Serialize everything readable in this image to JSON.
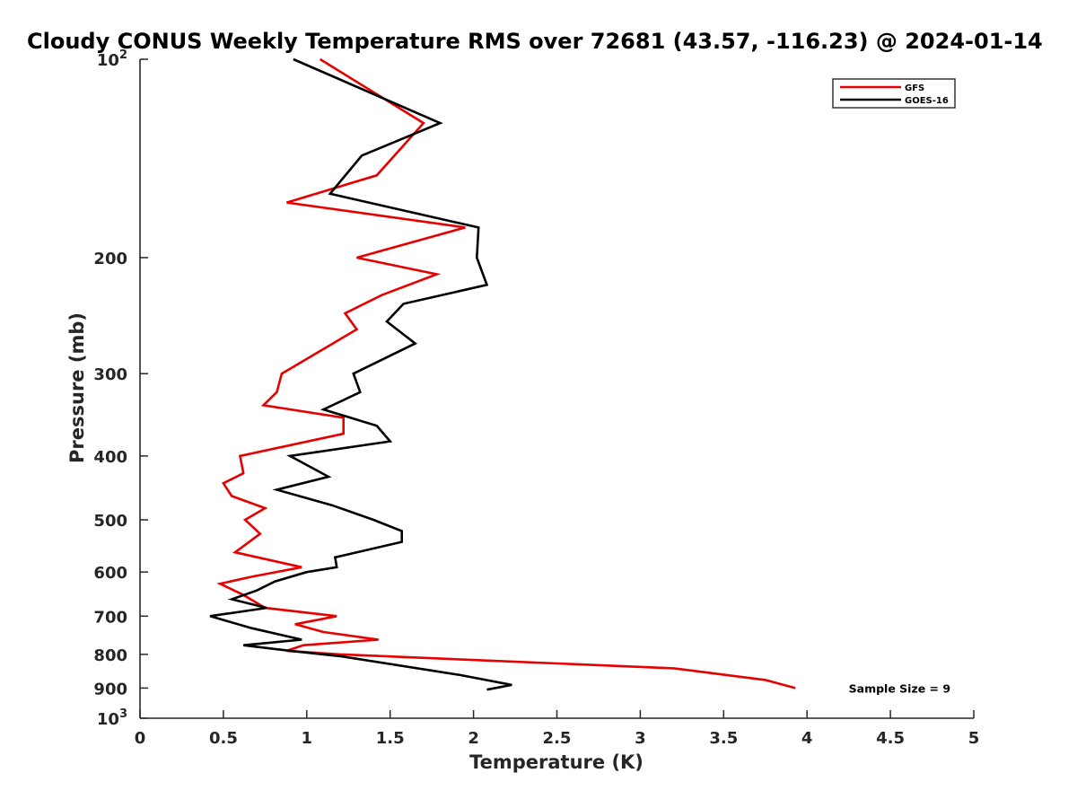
{
  "chart_data": {
    "type": "line",
    "title": "Cloudy CONUS Weekly Temperature RMS over 72681 (43.57, -116.23) @ 2024-01-14",
    "xlabel": "Temperature (K)",
    "ylabel": "Pressure (mb)",
    "xlim": [
      0,
      5
    ],
    "ylim": [
      100,
      1000
    ],
    "y_scale": "log",
    "y_reversed": true,
    "grid": false,
    "legend_position": "top-right",
    "x_ticks": [
      0,
      0.5,
      1,
      1.5,
      2,
      2.5,
      3,
      3.5,
      4,
      4.5,
      5
    ],
    "x_tick_labels": [
      "0",
      "0.5",
      "1",
      "1.5",
      "2",
      "2.5",
      "3",
      "3.5",
      "4",
      "4.5",
      "5"
    ],
    "y_ticks": [
      {
        "value": 100,
        "base": "10",
        "exp": "2"
      },
      {
        "value": 200,
        "label": "200"
      },
      {
        "value": 300,
        "label": "300"
      },
      {
        "value": 400,
        "label": "400"
      },
      {
        "value": 500,
        "label": "500"
      },
      {
        "value": 600,
        "label": "600"
      },
      {
        "value": 700,
        "label": "700"
      },
      {
        "value": 800,
        "label": "800"
      },
      {
        "value": 900,
        "label": "900"
      },
      {
        "value": 1000,
        "base": "10",
        "exp": "3"
      }
    ],
    "series": [
      {
        "name": "GFS",
        "color": "#e60000",
        "points": [
          [
            1.08,
            100
          ],
          [
            1.7,
            125
          ],
          [
            1.42,
            150
          ],
          [
            0.88,
            165
          ],
          [
            1.95,
            180
          ],
          [
            1.3,
            200
          ],
          [
            1.78,
            212
          ],
          [
            1.45,
            228
          ],
          [
            1.23,
            243
          ],
          [
            1.3,
            257
          ],
          [
            0.85,
            300
          ],
          [
            0.82,
            320
          ],
          [
            0.74,
            335
          ],
          [
            1.22,
            350
          ],
          [
            1.22,
            370
          ],
          [
            0.6,
            400
          ],
          [
            0.62,
            425
          ],
          [
            0.5,
            440
          ],
          [
            0.55,
            460
          ],
          [
            0.75,
            480
          ],
          [
            0.63,
            500
          ],
          [
            0.72,
            525
          ],
          [
            0.57,
            560
          ],
          [
            0.97,
            590
          ],
          [
            0.67,
            610
          ],
          [
            0.48,
            625
          ],
          [
            0.62,
            650
          ],
          [
            0.75,
            680
          ],
          [
            1.18,
            700
          ],
          [
            0.93,
            720
          ],
          [
            1.1,
            740
          ],
          [
            1.43,
            760
          ],
          [
            0.98,
            775
          ],
          [
            0.88,
            790
          ],
          [
            1.2,
            800
          ],
          [
            3.2,
            840
          ],
          [
            3.75,
            875
          ],
          [
            3.93,
            900
          ]
        ]
      },
      {
        "name": "GOES-16",
        "color": "#000000",
        "points": [
          [
            0.92,
            100
          ],
          [
            1.8,
            125
          ],
          [
            1.33,
            140
          ],
          [
            1.14,
            160
          ],
          [
            2.03,
            180
          ],
          [
            2.02,
            200
          ],
          [
            2.08,
            220
          ],
          [
            1.58,
            235
          ],
          [
            1.48,
            250
          ],
          [
            1.65,
            270
          ],
          [
            1.28,
            300
          ],
          [
            1.32,
            320
          ],
          [
            1.1,
            340
          ],
          [
            1.42,
            360
          ],
          [
            1.5,
            380
          ],
          [
            0.9,
            400
          ],
          [
            1.13,
            430
          ],
          [
            0.82,
            450
          ],
          [
            1.15,
            475
          ],
          [
            1.4,
            500
          ],
          [
            1.57,
            520
          ],
          [
            1.57,
            540
          ],
          [
            1.17,
            570
          ],
          [
            1.18,
            590
          ],
          [
            1.0,
            600
          ],
          [
            0.81,
            620
          ],
          [
            0.7,
            640
          ],
          [
            0.55,
            660
          ],
          [
            0.76,
            680
          ],
          [
            0.42,
            700
          ],
          [
            0.67,
            730
          ],
          [
            0.97,
            760
          ],
          [
            0.62,
            775
          ],
          [
            0.9,
            790
          ],
          [
            1.2,
            805
          ],
          [
            1.92,
            860
          ],
          [
            2.23,
            890
          ],
          [
            2.08,
            905
          ]
        ]
      }
    ],
    "annotations": [
      {
        "text": "Sample Size = 9",
        "x": 4.25,
        "y": 900
      }
    ]
  }
}
